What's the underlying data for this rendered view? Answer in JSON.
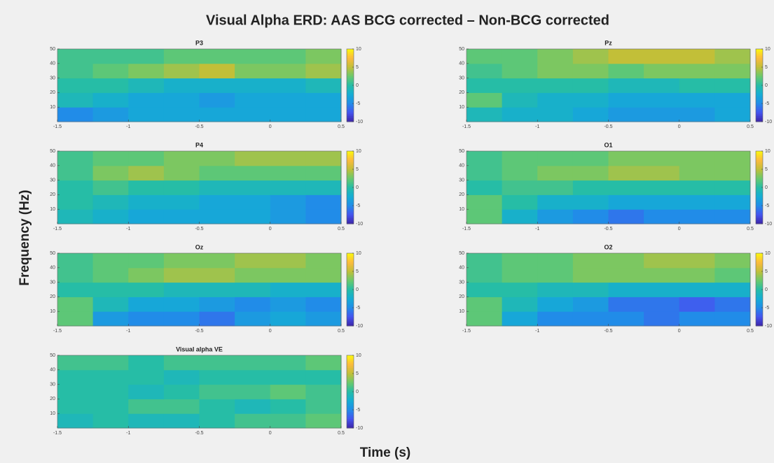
{
  "title": "Visual Alpha ERD: AAS BCG corrected – Non-BCG corrected",
  "xlabel": "Time (s)",
  "ylabel": "Frequency (Hz)",
  "chart_data": [
    {
      "type": "heatmap",
      "title": "P3",
      "x": [
        -1.375,
        -1.125,
        -0.875,
        -0.625,
        -0.375,
        -0.125,
        0.125,
        0.375
      ],
      "y": [
        5,
        15,
        25,
        35,
        45
      ],
      "z": [
        [
          -5,
          -4,
          -3,
          -3,
          -3,
          -3,
          -3,
          -3
        ],
        [
          -1,
          -2,
          -3,
          -3,
          -4,
          -3,
          -3,
          -3
        ],
        [
          0,
          0,
          -1,
          -2,
          -2,
          -2,
          -2,
          -1
        ],
        [
          1,
          2,
          3,
          4,
          5,
          3,
          3,
          4
        ],
        [
          1,
          1,
          1,
          2,
          2,
          2,
          2,
          3
        ]
      ],
      "xlim": [
        -1.5,
        0.5
      ],
      "xticks": [
        -1.5,
        -1,
        -0.5,
        0,
        0.5
      ],
      "ylim": [
        0,
        50
      ],
      "yticks": [
        10,
        20,
        30,
        40,
        50
      ],
      "clim": [
        -10,
        10
      ],
      "cticks": [
        -10,
        -5,
        0,
        5,
        10
      ]
    },
    {
      "type": "heatmap",
      "title": "Pz",
      "x": [
        -1.375,
        -1.125,
        -0.875,
        -0.625,
        -0.375,
        -0.125,
        0.125,
        0.375
      ],
      "y": [
        5,
        15,
        25,
        35,
        45
      ],
      "z": [
        [
          -1,
          -2,
          -2,
          -3,
          -4,
          -4,
          -4,
          -3
        ],
        [
          2,
          -1,
          -2,
          -2,
          -3,
          -3,
          -3,
          -3
        ],
        [
          0,
          0,
          0,
          0,
          -1,
          -1,
          0,
          0
        ],
        [
          1,
          2,
          3,
          3,
          2,
          3,
          3,
          3
        ],
        [
          2,
          2,
          3,
          4,
          5,
          5,
          5,
          4
        ]
      ],
      "xlim": [
        -1.5,
        0.5
      ],
      "xticks": [
        -1.5,
        -1,
        -0.5,
        0,
        0.5
      ],
      "ylim": [
        0,
        50
      ],
      "yticks": [
        10,
        20,
        30,
        40,
        50
      ],
      "clim": [
        -10,
        10
      ],
      "cticks": [
        -10,
        -5,
        0,
        5,
        10
      ]
    },
    {
      "type": "heatmap",
      "title": "P4",
      "x": [
        -1.375,
        -1.125,
        -0.875,
        -0.625,
        -0.375,
        -0.125,
        0.125,
        0.375
      ],
      "y": [
        5,
        15,
        25,
        35,
        45
      ],
      "z": [
        [
          -1,
          -2,
          -3,
          -3,
          -3,
          -3,
          -4,
          -5
        ],
        [
          0,
          -1,
          -2,
          -2,
          -3,
          -3,
          -4,
          -5
        ],
        [
          0,
          1,
          0,
          0,
          -1,
          -1,
          -1,
          -1
        ],
        [
          1,
          3,
          4,
          3,
          2,
          2,
          2,
          2
        ],
        [
          1,
          2,
          2,
          3,
          3,
          4,
          4,
          4
        ]
      ],
      "xlim": [
        -1.5,
        0.5
      ],
      "xticks": [
        -1.5,
        -1,
        -0.5,
        0,
        0.5
      ],
      "ylim": [
        0,
        50
      ],
      "yticks": [
        10,
        20,
        30,
        40,
        50
      ],
      "clim": [
        -10,
        10
      ],
      "cticks": [
        -10,
        -5,
        0,
        5,
        10
      ]
    },
    {
      "type": "heatmap",
      "title": "O1",
      "x": [
        -1.375,
        -1.125,
        -0.875,
        -0.625,
        -0.375,
        -0.125,
        0.125,
        0.375
      ],
      "y": [
        5,
        15,
        25,
        35,
        45
      ],
      "z": [
        [
          2,
          -2,
          -4,
          -5,
          -6,
          -5,
          -5,
          -5
        ],
        [
          2,
          0,
          -2,
          -2,
          -3,
          -3,
          -3,
          -3
        ],
        [
          0,
          1,
          1,
          0,
          0,
          0,
          0,
          0
        ],
        [
          1,
          2,
          3,
          3,
          4,
          4,
          3,
          3
        ],
        [
          1,
          2,
          2,
          2,
          3,
          3,
          3,
          3
        ]
      ],
      "xlim": [
        -1.5,
        0.5
      ],
      "xticks": [
        -1.5,
        -1,
        -0.5,
        0,
        0.5
      ],
      "ylim": [
        0,
        50
      ],
      "yticks": [
        10,
        20,
        30,
        40,
        50
      ],
      "clim": [
        -10,
        10
      ],
      "cticks": [
        -10,
        -5,
        0,
        5,
        10
      ]
    },
    {
      "type": "heatmap",
      "title": "Oz",
      "x": [
        -1.375,
        -1.125,
        -0.875,
        -0.625,
        -0.375,
        -0.125,
        0.125,
        0.375
      ],
      "y": [
        5,
        15,
        25,
        35,
        45
      ],
      "z": [
        [
          2,
          -4,
          -5,
          -5,
          -6,
          -4,
          -3,
          -4
        ],
        [
          2,
          -1,
          -3,
          -3,
          -4,
          -5,
          -4,
          -5
        ],
        [
          0,
          0,
          0,
          -1,
          -1,
          -1,
          -2,
          -2
        ],
        [
          1,
          2,
          3,
          4,
          4,
          3,
          3,
          3
        ],
        [
          1,
          2,
          2,
          3,
          3,
          4,
          4,
          3
        ]
      ],
      "xlim": [
        -1.5,
        0.5
      ],
      "xticks": [
        -1.5,
        -1,
        -0.5,
        0,
        0.5
      ],
      "ylim": [
        0,
        50
      ],
      "yticks": [
        10,
        20,
        30,
        40,
        50
      ],
      "clim": [
        -10,
        10
      ],
      "cticks": [
        -10,
        -5,
        0,
        5,
        10
      ]
    },
    {
      "type": "heatmap",
      "title": "O2",
      "x": [
        -1.375,
        -1.125,
        -0.875,
        -0.625,
        -0.375,
        -0.125,
        0.125,
        0.375
      ],
      "y": [
        5,
        15,
        25,
        35,
        45
      ],
      "z": [
        [
          2,
          -3,
          -5,
          -5,
          -5,
          -6,
          -5,
          -5
        ],
        [
          2,
          -1,
          -3,
          -4,
          -6,
          -6,
          -7,
          -6
        ],
        [
          0,
          0,
          -1,
          -1,
          -2,
          -2,
          -2,
          -2
        ],
        [
          1,
          2,
          2,
          3,
          3,
          3,
          3,
          2
        ],
        [
          1,
          2,
          2,
          3,
          3,
          4,
          4,
          3
        ]
      ],
      "xlim": [
        -1.5,
        0.5
      ],
      "xticks": [
        -1.5,
        -1,
        -0.5,
        0,
        0.5
      ],
      "ylim": [
        0,
        50
      ],
      "yticks": [
        10,
        20,
        30,
        40,
        50
      ],
      "clim": [
        -10,
        10
      ],
      "cticks": [
        -10,
        -5,
        0,
        5,
        10
      ]
    },
    {
      "type": "heatmap",
      "title": "Visual alpha VE",
      "x": [
        -1.375,
        -1.125,
        -0.875,
        -0.625,
        -0.375,
        -0.125,
        0.125,
        0.375
      ],
      "y": [
        5,
        15,
        25,
        35,
        45
      ],
      "z": [
        [
          -1,
          0,
          -1,
          -1,
          0,
          1,
          1,
          2
        ],
        [
          0,
          0,
          1,
          1,
          0,
          -1,
          0,
          1
        ],
        [
          0,
          0,
          -1,
          0,
          1,
          1,
          2,
          1
        ],
        [
          0,
          0,
          0,
          -1,
          0,
          0,
          0,
          0
        ],
        [
          1,
          1,
          0,
          1,
          1,
          1,
          1,
          2
        ]
      ],
      "xlim": [
        -1.5,
        0.5
      ],
      "xticks": [
        -1.5,
        -1,
        -0.5,
        0,
        0.5
      ],
      "ylim": [
        0,
        50
      ],
      "yticks": [
        10,
        20,
        30,
        40,
        50
      ],
      "clim": [
        -10,
        10
      ],
      "cticks": [
        -10,
        -5,
        0,
        5,
        10
      ]
    }
  ]
}
